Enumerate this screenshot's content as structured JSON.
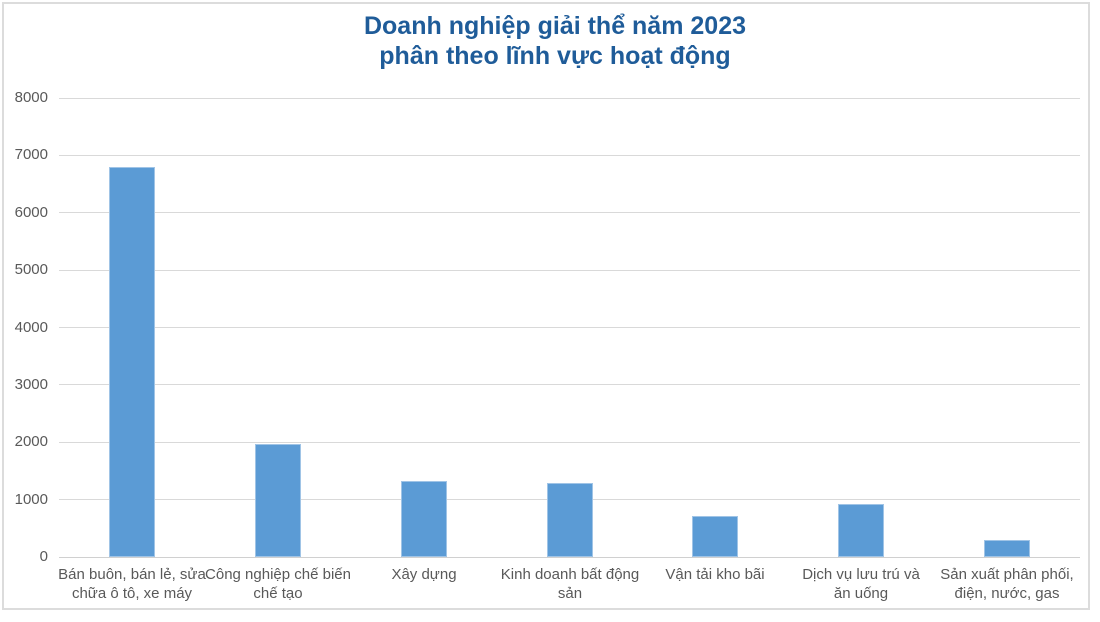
{
  "chart_data": {
    "type": "bar",
    "title": "Doanh nghiệp giải thể năm 2023\nphân theo lĩnh vực hoạt động",
    "categories": [
      "Bán buôn, bán lẻ, sửa\nchữa ô tô, xe máy",
      "Công nghiệp chế biến\nchế tạo",
      "Xây dựng",
      "Kinh doanh bất động\nsản",
      "Vận tải kho bãi",
      "Dịch vụ lưu trú và\năn uống",
      "Sản xuất phân phối,\nđiện, nước, gas"
    ],
    "values": [
      6800,
      1970,
      1320,
      1290,
      710,
      920,
      300
    ],
    "xlabel": "",
    "ylabel": "",
    "ylim": [
      0,
      8000
    ],
    "ytick_step": 1000,
    "grid": true,
    "legend": false,
    "colors": {
      "bar_fill": "#5b9bd5",
      "bar_border": "#a0c4e6",
      "gridline": "#d9d9d9",
      "axis_line": "#d0d0d0",
      "tick_label": "#595959",
      "title": "#1f5c99",
      "frame_border": "#dcdcdc",
      "background": "#ffffff"
    }
  }
}
